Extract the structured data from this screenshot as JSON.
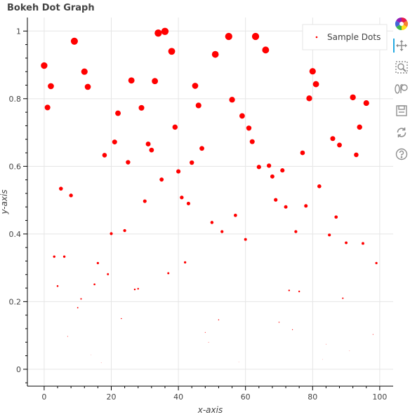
{
  "title": "Bokeh Dot Graph",
  "toolbar": {
    "tools": [
      {
        "name": "bokeh-logo-icon"
      },
      {
        "name": "pan-tool-icon"
      },
      {
        "name": "box-zoom-tool-icon"
      },
      {
        "name": "wheel-zoom-tool-icon"
      },
      {
        "name": "save-tool-icon"
      },
      {
        "name": "reset-tool-icon"
      },
      {
        "name": "help-tool-icon"
      }
    ]
  },
  "chart_data": {
    "type": "scatter",
    "title": "Bokeh Dot Graph",
    "xlabel": "x-axis",
    "ylabel": "y-axis",
    "xlim": [
      -5,
      104
    ],
    "ylim": [
      -0.05,
      1.04
    ],
    "xticks": [
      0,
      20,
      40,
      60,
      80,
      100
    ],
    "yticks": [
      0,
      0.2,
      0.4,
      0.6,
      0.8,
      1
    ],
    "grid": true,
    "legend_position": "top-right",
    "color": "#ff0000",
    "series": [
      {
        "name": "Sample Dots",
        "size_encodes": "y",
        "points": [
          [
            0,
            0.898
          ],
          [
            1,
            0.774
          ],
          [
            2,
            0.837
          ],
          [
            3,
            0.333
          ],
          [
            4,
            0.246
          ],
          [
            5,
            0.534
          ],
          [
            6,
            0.333
          ],
          [
            7,
            0.097
          ],
          [
            8,
            0.514
          ],
          [
            9,
            0.97
          ],
          [
            10,
            0.182
          ],
          [
            11,
            0.208
          ],
          [
            12,
            0.88
          ],
          [
            13,
            0.835
          ],
          [
            14,
            0.043
          ],
          [
            15,
            0.251
          ],
          [
            16,
            0.314
          ],
          [
            17,
            0.019
          ],
          [
            18,
            0.633
          ],
          [
            19,
            0.281
          ],
          [
            20,
            0.401
          ],
          [
            21,
            0.672
          ],
          [
            22,
            0.757
          ],
          [
            23,
            0.15
          ],
          [
            24,
            0.41
          ],
          [
            25,
            0.612
          ],
          [
            26,
            0.854
          ],
          [
            27,
            0.236
          ],
          [
            28,
            0.238
          ],
          [
            29,
            0.773
          ],
          [
            30,
            0.497
          ],
          [
            31,
            0.666
          ],
          [
            32,
            0.648
          ],
          [
            33,
            0.852
          ],
          [
            34,
            0.994
          ],
          [
            35,
            0.561
          ],
          [
            36,
            0.999
          ],
          [
            37,
            0.284
          ],
          [
            38,
            0.94
          ],
          [
            39,
            0.716
          ],
          [
            40,
            0.585
          ],
          [
            41,
            0.508
          ],
          [
            42,
            0.316
          ],
          [
            43,
            0.49
          ],
          [
            44,
            0.611
          ],
          [
            45,
            0.838
          ],
          [
            46,
            0.78
          ],
          [
            47,
            0.653
          ],
          [
            48,
            0.109
          ],
          [
            49,
            0.08
          ],
          [
            50,
            0.434
          ],
          [
            51,
            0.931
          ],
          [
            52,
            0.146
          ],
          [
            53,
            0.407
          ],
          [
            55,
            0.984
          ],
          [
            56,
            0.797
          ],
          [
            57,
            0.455
          ],
          [
            58,
            0.022
          ],
          [
            59,
            0.749
          ],
          [
            60,
            0.384
          ],
          [
            61,
            0.713
          ],
          [
            62,
            0.673
          ],
          [
            63,
            0.984
          ],
          [
            64,
            0.598
          ],
          [
            66,
            0.944
          ],
          [
            67,
            0.602
          ],
          [
            68,
            0.57
          ],
          [
            69,
            0.501
          ],
          [
            70,
            0.139
          ],
          [
            71,
            0.588
          ],
          [
            72,
            0.48
          ],
          [
            73,
            0.233
          ],
          [
            74,
            0.117
          ],
          [
            75,
            0.407
          ],
          [
            76,
            0.23
          ],
          [
            77,
            0.64
          ],
          [
            78,
            0.483
          ],
          [
            79,
            0.801
          ],
          [
            80,
            0.881
          ],
          [
            81,
            0.843
          ],
          [
            82,
            0.541
          ],
          [
            83,
            0.029
          ],
          [
            84,
            0.074
          ],
          [
            85,
            0.397
          ],
          [
            86,
            0.682
          ],
          [
            87,
            0.45
          ],
          [
            88,
            0.663
          ],
          [
            89,
            0.21
          ],
          [
            90,
            0.374
          ],
          [
            91,
            0.055
          ],
          [
            92,
            0.804
          ],
          [
            93,
            0.634
          ],
          [
            94,
            0.716
          ],
          [
            95,
            0.372
          ],
          [
            96,
            0.787
          ],
          [
            98,
            0.103
          ],
          [
            99,
            0.314
          ]
        ]
      }
    ]
  }
}
